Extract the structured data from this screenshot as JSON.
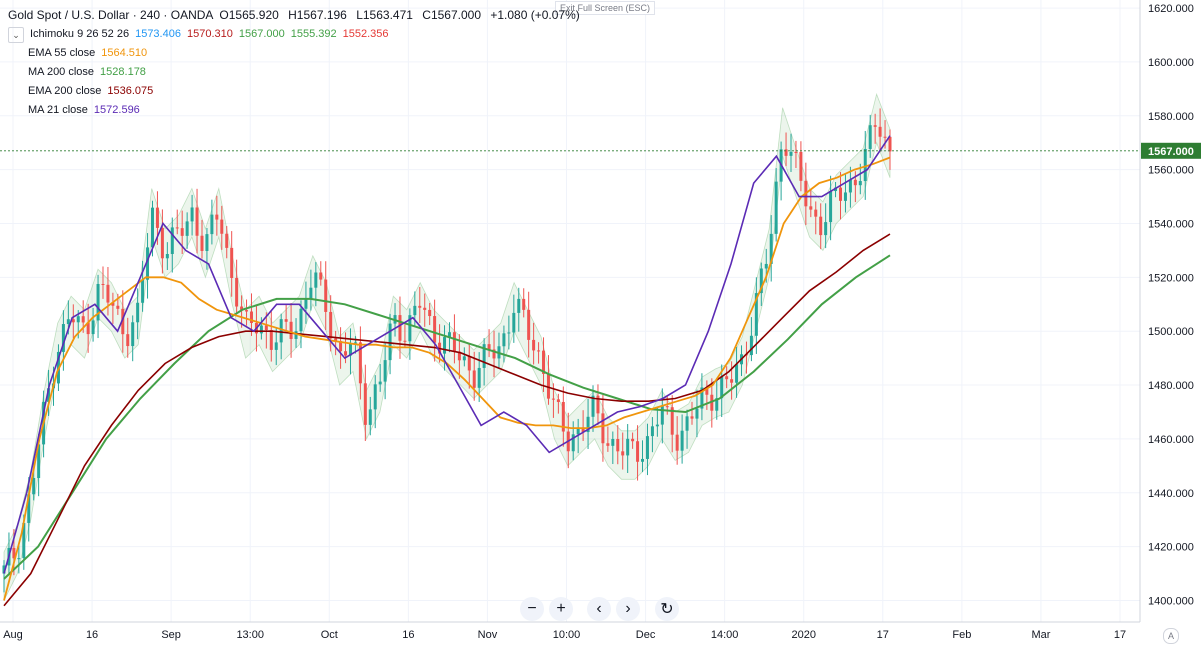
{
  "header": {
    "symbol": "Gold Spot / U.S. Dollar · 240 · OANDA",
    "open": "O1565.920",
    "high": "H1567.196",
    "low": "L1563.471",
    "close": "C1567.000",
    "change": "+1.080 (+0.07%)"
  },
  "toolbar": {
    "exit_fullscreen": "Exit Full Screen (ESC)"
  },
  "legend": {
    "toggle_icon": "chevron-down-icon",
    "ichimoku": {
      "label": "Ichimoku 9 26 52 26",
      "values": [
        "1573.406",
        "1570.310",
        "1567.000",
        "1555.392",
        "1552.356"
      ],
      "colors": [
        "#2196f3",
        "#b71c1c",
        "#43a047",
        "#43a047",
        "#e53935"
      ]
    },
    "ema55": {
      "label": "EMA 55 close",
      "value": "1564.510",
      "color": "#f0950c"
    },
    "ma200": {
      "label": "MA 200 close",
      "value": "1528.178",
      "color": "#43a047"
    },
    "ema200": {
      "label": "EMA 200 close",
      "value": "1536.075",
      "color": "#8b0000"
    },
    "ma21": {
      "label": "MA 21 close",
      "value": "1572.596",
      "color": "#5b2bb5"
    }
  },
  "price_badge": {
    "value": "1567.000",
    "color": "#2e7d32"
  },
  "controls": {
    "zoom_out": "−",
    "zoom_in": "+",
    "scroll_left": "‹",
    "scroll_right": "›",
    "reset": "↻"
  },
  "corner_label": "A",
  "chart_data": {
    "type": "candlestick",
    "ylim": [
      1392,
      1623
    ],
    "y_ticks": [
      "1620.000",
      "1600.000",
      "1580.000",
      "1560.000",
      "1540.000",
      "1520.000",
      "1500.000",
      "1480.000",
      "1460.000",
      "1440.000",
      "1420.000",
      "1400.000"
    ],
    "x_ticks": [
      "Aug",
      "16",
      "Sep",
      "13:00",
      "Oct",
      "16",
      "Nov",
      "10:00",
      "Dec",
      "14:00",
      "2020",
      "17",
      "Feb",
      "Mar",
      "17"
    ],
    "grid": true,
    "close_series": [
      1410,
      1420,
      1440,
      1470,
      1495,
      1505,
      1500,
      1515,
      1510,
      1500,
      1505,
      1545,
      1530,
      1535,
      1545,
      1530,
      1545,
      1520,
      1500,
      1505,
      1495,
      1500,
      1505,
      1520,
      1510,
      1490,
      1495,
      1470,
      1480,
      1505,
      1500,
      1510,
      1500,
      1495,
      1490,
      1485,
      1490,
      1495,
      1510,
      1500,
      1490,
      1470,
      1460,
      1465,
      1470,
      1460,
      1455,
      1455,
      1460,
      1470,
      1462,
      1465,
      1475,
      1478,
      1480,
      1490,
      1510,
      1530,
      1575,
      1560,
      1545,
      1540,
      1550,
      1555,
      1560,
      1580,
      1567
    ],
    "ema55": [
      1400,
      1425,
      1460,
      1485,
      1498,
      1505,
      1510,
      1515,
      1520,
      1520,
      1518,
      1512,
      1508,
      1506,
      1504,
      1502,
      1500,
      1498,
      1497,
      1496,
      1495,
      1495,
      1494,
      1494,
      1492,
      1488,
      1482,
      1475,
      1468,
      1466,
      1465,
      1465,
      1464,
      1464,
      1465,
      1468,
      1470,
      1472,
      1474,
      1476,
      1480,
      1490,
      1505,
      1520,
      1540,
      1550,
      1555,
      1557,
      1560,
      1562,
      1564.5
    ],
    "ma21": [
      1410,
      1440,
      1480,
      1505,
      1510,
      1500,
      1520,
      1540,
      1530,
      1525,
      1505,
      1500,
      1510,
      1510,
      1500,
      1490,
      1495,
      1500,
      1505,
      1495,
      1480,
      1465,
      1470,
      1465,
      1455,
      1460,
      1465,
      1470,
      1472,
      1475,
      1480,
      1500,
      1525,
      1555,
      1565,
      1550,
      1550,
      1555,
      1560,
      1572.6
    ],
    "ema200": [
      1398,
      1410,
      1430,
      1450,
      1465,
      1478,
      1488,
      1494,
      1498,
      1500,
      1500,
      1499,
      1498,
      1497,
      1496,
      1495,
      1494,
      1492,
      1488,
      1484,
      1480,
      1477,
      1475,
      1474,
      1474,
      1475,
      1478,
      1485,
      1495,
      1505,
      1515,
      1522,
      1530,
      1536.1
    ],
    "ma200": [
      1408,
      1420,
      1440,
      1460,
      1475,
      1488,
      1500,
      1508,
      1512,
      1512,
      1510,
      1506,
      1502,
      1498,
      1494,
      1490,
      1484,
      1479,
      1475,
      1471,
      1470,
      1475,
      1485,
      1497,
      1510,
      1520,
      1528.2
    ],
    "current_price": 1567.0
  }
}
